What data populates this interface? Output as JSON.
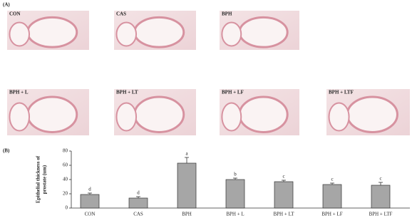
{
  "panel_a": {
    "label": "(A)",
    "images": [
      "CON",
      "CAS",
      "BPH",
      "BPH + L",
      "BPH + LT",
      "BPH + LF",
      "BPH + LTF"
    ]
  },
  "chart_data": {
    "type": "bar",
    "panel_label": "(B)",
    "ylabel": [
      "Epithelial thickness of",
      "prostate (um)"
    ],
    "categories": [
      "CON",
      "CAS",
      "BPH",
      "BPH + L",
      "BPH + LT",
      "BPH + LF",
      "BPH + LTF"
    ],
    "values": [
      19,
      14,
      63,
      40,
      37,
      33,
      32
    ],
    "errors": [
      2,
      2,
      8,
      2,
      2,
      2,
      4
    ],
    "letters": [
      "d",
      "d",
      "a",
      "b",
      "c",
      "c",
      "c"
    ],
    "color": "#a6a6a6",
    "ylim": [
      0,
      80
    ],
    "yticks": [
      0,
      20,
      40,
      60,
      80
    ]
  }
}
